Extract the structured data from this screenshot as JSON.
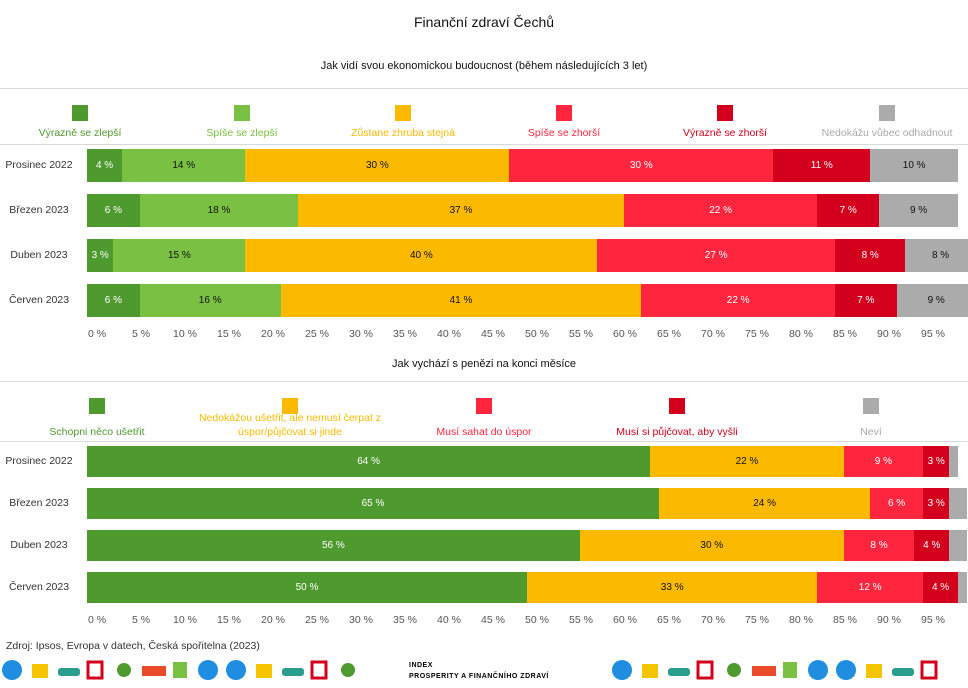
{
  "title": "Finanční zdraví Čechů",
  "source": "Zdroj: Ipsos, Evropa v datech, Česká spořitelna (2023)",
  "brand": {
    "line1": "INDEX",
    "line2": "PROSPERITY A FINANČNÍHO ZDRAVÍ"
  },
  "chart_data": [
    {
      "type": "bar",
      "orientation": "horizontal",
      "stacked": true,
      "title": "Jak vidí svou ekonomickou budoucnost (během následujících 3 let)",
      "categories": [
        "Prosinec 2022",
        "Březen 2023",
        "Duben 2023",
        "Červen 2023"
      ],
      "xlim": [
        0,
        100
      ],
      "ticks": [
        "0 %",
        "5 %",
        "10 %",
        "15 %",
        "20 %",
        "25 %",
        "30 %",
        "35 %",
        "40 %",
        "45 %",
        "50 %",
        "55 %",
        "60 %",
        "65 %",
        "70 %",
        "75 %",
        "80 %",
        "85 %",
        "90 %",
        "95 %"
      ],
      "legend_position": "top",
      "series": [
        {
          "name": "Výrazně se zlepší",
          "color": "#4f9a2f",
          "label_color": "#4f9a2f",
          "text_color": "#ffffff",
          "values": [
            4,
            6,
            3,
            6
          ],
          "labels": [
            "4 %",
            "6 %",
            "3 %",
            "6 %"
          ]
        },
        {
          "name": "Spíše se zlepší",
          "color": "#79c043",
          "label_color": "#79c043",
          "text_color": "#111111",
          "values": [
            14,
            18,
            15,
            16
          ],
          "labels": [
            "14 %",
            "18 %",
            "15 %",
            "16 %"
          ]
        },
        {
          "name": "Zůstane zhruba stejná",
          "color": "#fbb900",
          "label_color": "#fbb900",
          "text_color": "#111111",
          "values": [
            30,
            37,
            40,
            41
          ],
          "labels": [
            "30 %",
            "37 %",
            "40 %",
            "41 %"
          ]
        },
        {
          "name": "Spíše se zhorší",
          "color": "#fe263f",
          "label_color": "#fe263f",
          "text_color": "#ffffff",
          "values": [
            30,
            22,
            27,
            22
          ],
          "labels": [
            "30 %",
            "22 %",
            "27 %",
            "22 %"
          ]
        },
        {
          "name": "Výrazně se zhorší",
          "color": "#d2001c",
          "label_color": "#d2001c",
          "text_color": "#ffffff",
          "values": [
            11,
            7,
            8,
            7
          ],
          "labels": [
            "11 %",
            "7 %",
            "8 %",
            "7 %"
          ]
        },
        {
          "name": "Nedokážu vůbec odhadnout",
          "color": "#ababab",
          "label_color": "#aaaaaa",
          "text_color": "#111111",
          "values": [
            10,
            9,
            8,
            9
          ],
          "labels": [
            "10 %",
            "9 %",
            "8 %",
            "9 %"
          ]
        }
      ]
    },
    {
      "type": "bar",
      "orientation": "horizontal",
      "stacked": true,
      "title": "Jak vychází s penězi na konci měsíce",
      "categories": [
        "Prosinec 2022",
        "Březen 2023",
        "Duben 2023",
        "Červen 2023"
      ],
      "xlim": [
        0,
        100
      ],
      "ticks": [
        "0 %",
        "5 %",
        "10 %",
        "15 %",
        "20 %",
        "25 %",
        "30 %",
        "35 %",
        "40 %",
        "45 %",
        "50 %",
        "55 %",
        "60 %",
        "65 %",
        "70 %",
        "75 %",
        "80 %",
        "85 %",
        "90 %",
        "95 %"
      ],
      "legend_position": "top",
      "series": [
        {
          "name": "Schopni něco ušetřit",
          "color": "#4f9a2f",
          "label_color": "#4f9a2f",
          "text_color": "#ffffff",
          "values": [
            64,
            65,
            56,
            50
          ],
          "labels": [
            "64 %",
            "65 %",
            "56 %",
            "50 %"
          ]
        },
        {
          "name": "Nedokážou ušetřit, ale nemusí čerpat z úspor/půjčovat si jinde",
          "color": "#fbb900",
          "label_color": "#fbb900",
          "text_color": "#111111",
          "values": [
            22,
            24,
            30,
            33
          ],
          "labels": [
            "22 %",
            "24 %",
            "30 %",
            "33 %"
          ]
        },
        {
          "name": "Musí sahat do úspor",
          "color": "#fe263f",
          "label_color": "#fe263f",
          "text_color": "#ffffff",
          "values": [
            9,
            6,
            8,
            12
          ],
          "labels": [
            "9 %",
            "6 %",
            "8 %",
            "12 %"
          ]
        },
        {
          "name": "Musí si půjčovat, aby vyšli",
          "color": "#d2001c",
          "label_color": "#d2001c",
          "text_color": "#ffffff",
          "values": [
            3,
            3,
            4,
            4
          ],
          "labels": [
            "3 %",
            "3 %",
            "4 %",
            "4 %"
          ]
        },
        {
          "name": "Neví",
          "color": "#ababab",
          "label_color": "#aaaaaa",
          "text_color": "#111111",
          "values": [
            1,
            2,
            2,
            1
          ],
          "labels": [
            "",
            "",
            "",
            ""
          ]
        }
      ]
    }
  ]
}
